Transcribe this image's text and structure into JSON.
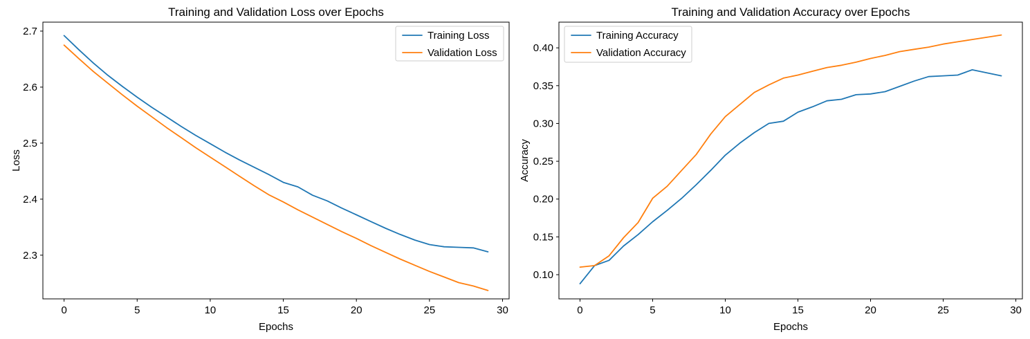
{
  "figure": {
    "background": "#ffffff",
    "text_color": "#000000",
    "spine_color": "#000000",
    "legend_border_color": "#cccccc",
    "legend_background": "#ffffff"
  },
  "chart_data": [
    {
      "type": "line",
      "title": "Training and Validation Loss over Epochs",
      "xlabel": "Epochs",
      "ylabel": "Loss",
      "xlim": [
        -1.45,
        30.45
      ],
      "ylim": [
        2.222,
        2.716
      ],
      "xticks": [
        0,
        5,
        10,
        15,
        20,
        25,
        30
      ],
      "xtick_labels": [
        "0",
        "5",
        "10",
        "15",
        "20",
        "25",
        "30"
      ],
      "yticks": [
        2.3,
        2.4,
        2.5,
        2.6,
        2.7
      ],
      "ytick_labels": [
        "2.3",
        "2.4",
        "2.5",
        "2.6",
        "2.7"
      ],
      "grid": false,
      "legend_position": "upper-right",
      "x": [
        0,
        1,
        2,
        3,
        4,
        5,
        6,
        7,
        8,
        9,
        10,
        11,
        12,
        13,
        14,
        15,
        16,
        17,
        18,
        19,
        20,
        21,
        22,
        23,
        24,
        25,
        26,
        27,
        28,
        29
      ],
      "series": [
        {
          "name": "Training Loss",
          "color": "#1f77b4",
          "values": [
            2.692,
            2.667,
            2.643,
            2.621,
            2.601,
            2.582,
            2.564,
            2.547,
            2.53,
            2.514,
            2.499,
            2.484,
            2.47,
            2.457,
            2.444,
            2.43,
            2.422,
            2.407,
            2.397,
            2.384,
            2.372,
            2.36,
            2.348,
            2.337,
            2.327,
            2.319,
            2.315,
            2.314,
            2.313,
            2.306
          ]
        },
        {
          "name": "Validation Loss",
          "color": "#ff7f0e",
          "values": [
            2.675,
            2.651,
            2.628,
            2.607,
            2.586,
            2.566,
            2.547,
            2.528,
            2.51,
            2.492,
            2.475,
            2.458,
            2.441,
            2.424,
            2.408,
            2.395,
            2.381,
            2.368,
            2.355,
            2.342,
            2.33,
            2.317,
            2.305,
            2.293,
            2.282,
            2.271,
            2.261,
            2.251,
            2.245,
            2.237
          ]
        }
      ]
    },
    {
      "type": "line",
      "title": "Training and Validation Accuracy over Epochs",
      "xlabel": "Epochs",
      "ylabel": "Accuracy",
      "xlim": [
        -1.45,
        30.45
      ],
      "ylim": [
        0.068,
        0.434
      ],
      "xticks": [
        0,
        5,
        10,
        15,
        20,
        25,
        30
      ],
      "xtick_labels": [
        "0",
        "5",
        "10",
        "15",
        "20",
        "25",
        "30"
      ],
      "yticks": [
        0.1,
        0.15,
        0.2,
        0.25,
        0.3,
        0.35,
        0.4
      ],
      "ytick_labels": [
        "0.10",
        "0.15",
        "0.20",
        "0.25",
        "0.30",
        "0.35",
        "0.40"
      ],
      "grid": false,
      "legend_position": "upper-left",
      "x": [
        0,
        1,
        2,
        3,
        4,
        5,
        6,
        7,
        8,
        9,
        10,
        11,
        12,
        13,
        14,
        15,
        16,
        17,
        18,
        19,
        20,
        21,
        22,
        23,
        24,
        25,
        26,
        27,
        28,
        29
      ],
      "series": [
        {
          "name": "Training Accuracy",
          "color": "#1f77b4",
          "values": [
            0.088,
            0.112,
            0.119,
            0.138,
            0.153,
            0.17,
            0.185,
            0.201,
            0.219,
            0.238,
            0.258,
            0.274,
            0.288,
            0.3,
            0.303,
            0.315,
            0.322,
            0.33,
            0.332,
            0.338,
            0.339,
            0.342,
            0.349,
            0.356,
            0.362,
            0.363,
            0.364,
            0.371,
            0.367,
            0.363
          ]
        },
        {
          "name": "Validation Accuracy",
          "color": "#ff7f0e",
          "values": [
            0.11,
            0.112,
            0.125,
            0.149,
            0.169,
            0.201,
            0.217,
            0.238,
            0.259,
            0.286,
            0.309,
            0.325,
            0.341,
            0.351,
            0.36,
            0.364,
            0.369,
            0.374,
            0.377,
            0.381,
            0.386,
            0.39,
            0.395,
            0.398,
            0.401,
            0.405,
            0.408,
            0.411,
            0.414,
            0.417
          ]
        }
      ]
    }
  ]
}
